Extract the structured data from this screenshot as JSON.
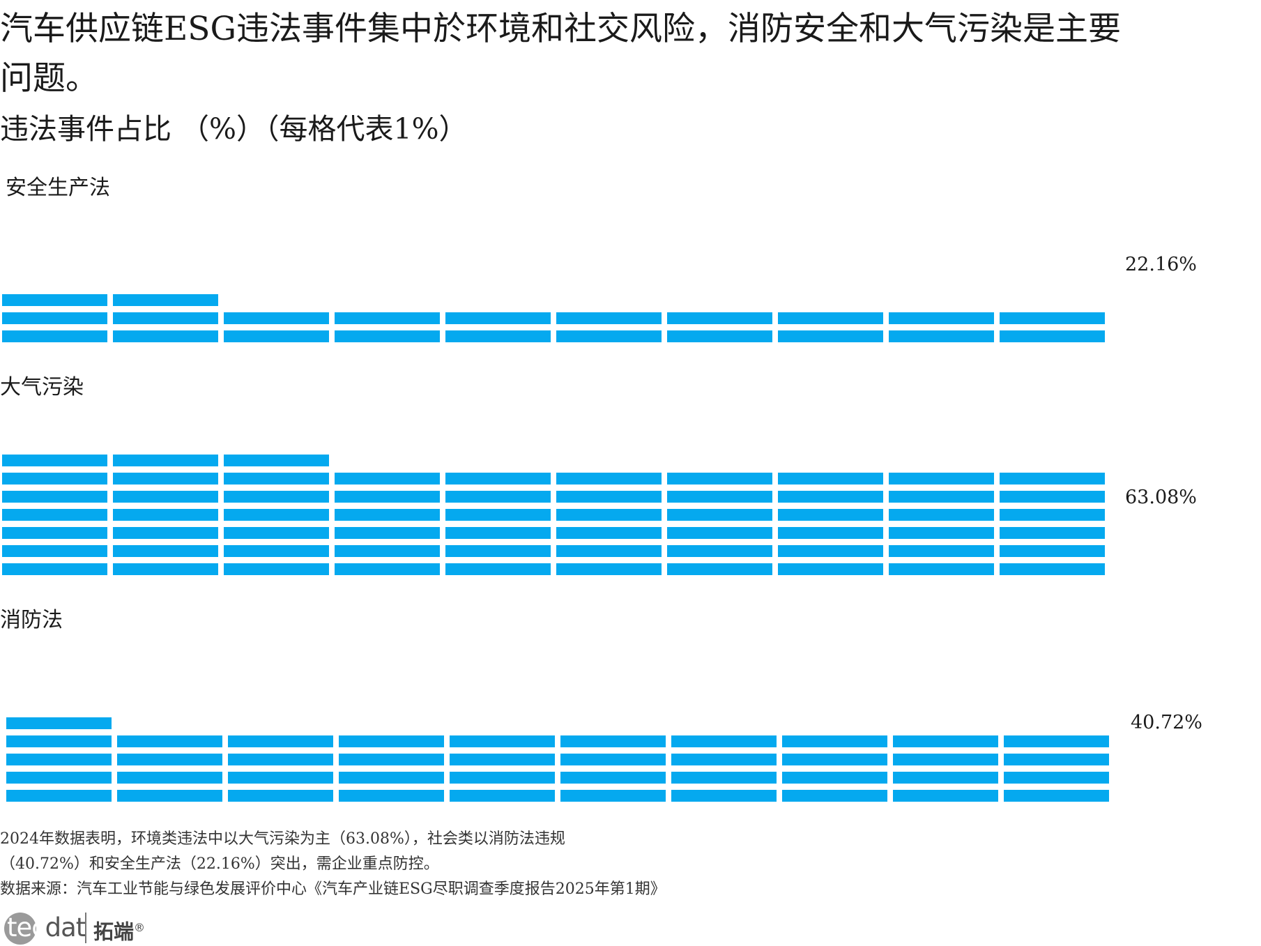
{
  "header": {
    "title": "汽车供应链ESG违法事件集中於环境和社交风险，消防安全和大气污染是主要问题。",
    "subtitle": "违法事件占比 （%）（每格代表1%）"
  },
  "chart_data": {
    "type": "waffle",
    "unit": "%",
    "cell_value": 1,
    "color": "#05a9ef",
    "panels": [
      {
        "label": "安全生产法",
        "value": 22.16,
        "value_label": "22.16%"
      },
      {
        "label": "大气污染",
        "value": 63.08,
        "value_label": "63.08%"
      },
      {
        "label": "消防法",
        "value": 40.72,
        "value_label": "40.72%"
      }
    ]
  },
  "notes": {
    "line1": "2024年数据表明，环境类违法中以大气污染为主（63.08%），社会类以消防法违规",
    "line2": "（40.72%）和安全生产法（22.16%）突出，需企业重点防控。",
    "source": "数据来源：汽车工业节能与绿色发展评价中心《汽车产业链ESG尽职调查季度报告2025年第1期》"
  },
  "logo": {
    "text_latin": "tecdat",
    "text_first": "tec",
    "text_rest": "dat",
    "text_cn": "拓端",
    "mark": "®"
  }
}
